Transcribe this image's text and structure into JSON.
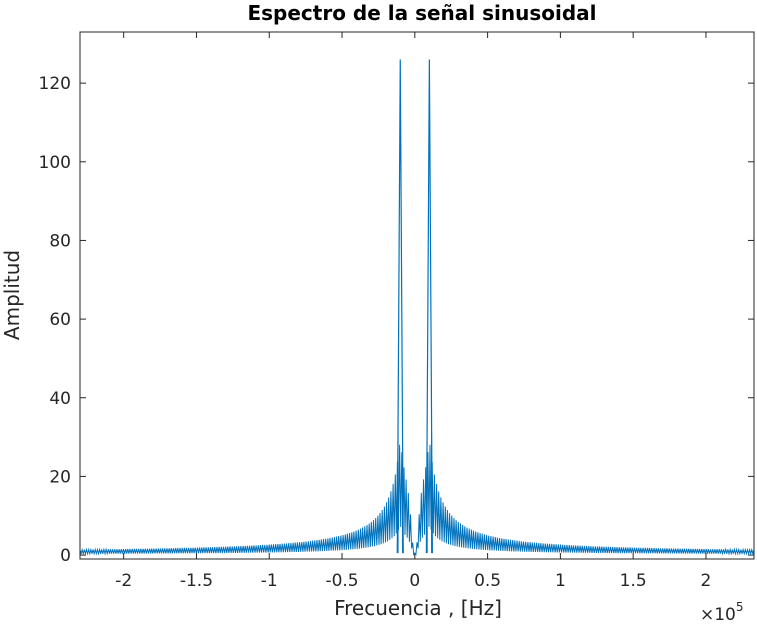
{
  "chart_data": {
    "type": "line",
    "title": "Espectro de la señal sinusoidal",
    "xlabel": "Frecuencia , [Hz]",
    "ylabel": "Amplitud",
    "x_exponent_base": "×10",
    "x_exponent_power": "5",
    "xlim": [
      -2.3,
      2.33
    ],
    "ylim": [
      -1,
      133
    ],
    "x_ticks": [
      -2,
      -1.5,
      -1,
      -0.5,
      0,
      0.5,
      1,
      1.5,
      2
    ],
    "x_tick_labels": [
      "-2",
      "-1.5",
      "-1",
      "-0.5",
      "0",
      "0.5",
      "1",
      "1.5",
      "2"
    ],
    "y_ticks": [
      0,
      20,
      40,
      60,
      80,
      100,
      120
    ],
    "y_tick_labels": [
      "0",
      "20",
      "40",
      "60",
      "80",
      "100",
      "120"
    ],
    "grid": false,
    "series": [
      {
        "color": "#0072bd",
        "peaks": [
          {
            "x": -0.1,
            "y": 126
          },
          {
            "x": 0.1,
            "y": 126
          }
        ],
        "side_lobes": [
          {
            "x": -0.115,
            "y": 31
          },
          {
            "x": -0.085,
            "y": 23
          },
          {
            "x": 0.085,
            "y": 23
          },
          {
            "x": 0.115,
            "y": 31
          }
        ],
        "floor_level": 1.0
      }
    ]
  }
}
